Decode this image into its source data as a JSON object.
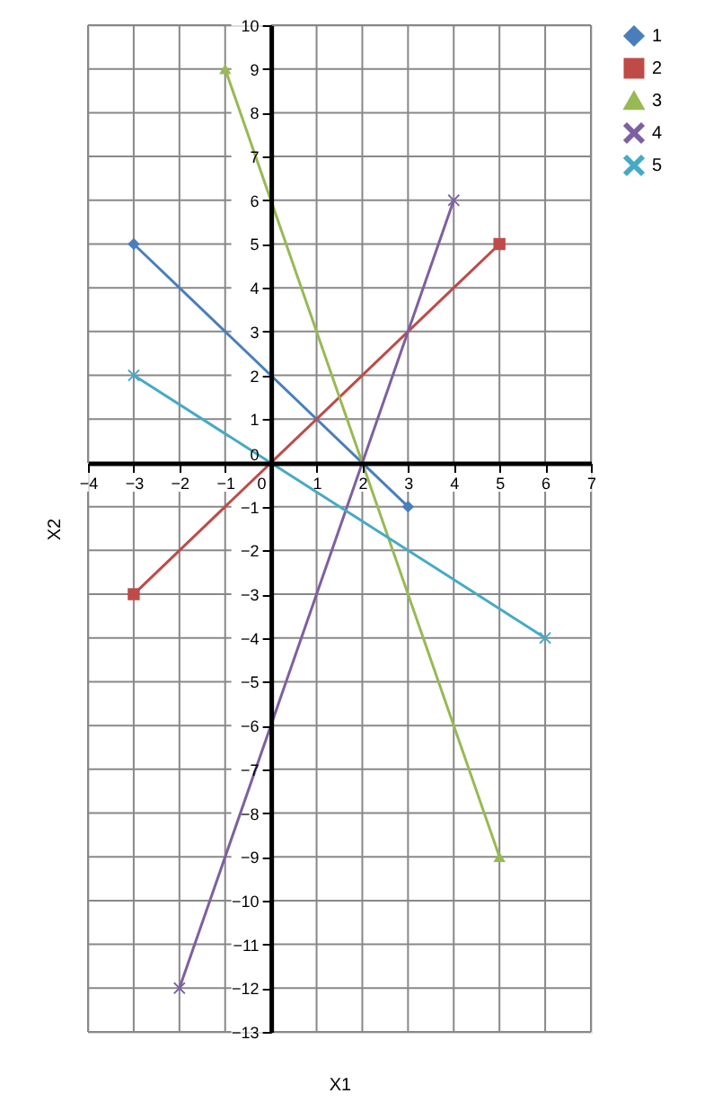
{
  "chart_data": {
    "type": "line",
    "xlabel": "X1",
    "ylabel": "X2",
    "xlim": [
      -4,
      7
    ],
    "xticks": [
      -4,
      -3,
      -2,
      -1,
      0,
      1,
      2,
      3,
      4,
      5,
      6,
      7
    ],
    "ylim": [
      -13,
      10
    ],
    "yticks": [
      -13,
      -12,
      -11,
      -10,
      -9,
      -8,
      -7,
      -6,
      -5,
      -4,
      -3,
      -2,
      -1,
      0,
      1,
      2,
      3,
      4,
      5,
      6,
      7,
      8,
      9,
      10
    ],
    "grid": true,
    "legend": "right",
    "series": [
      {
        "name": "1",
        "color": "#4a7ebb",
        "marker": "diamond",
        "x": [
          -3,
          3
        ],
        "values": [
          5,
          -1
        ]
      },
      {
        "name": "2",
        "color": "#be4b48",
        "marker": "square",
        "x": [
          -3,
          5
        ],
        "values": [
          -3,
          5
        ]
      },
      {
        "name": "3",
        "color": "#98b954",
        "marker": "triangle",
        "x": [
          -1,
          5
        ],
        "values": [
          9,
          -9
        ]
      },
      {
        "name": "4",
        "color": "#7d60a0",
        "marker": "cross",
        "x": [
          -2,
          4
        ],
        "values": [
          -12,
          6
        ]
      },
      {
        "name": "5",
        "color": "#46aac5",
        "marker": "cross",
        "x": [
          -3,
          6
        ],
        "values": [
          2,
          -4
        ]
      }
    ]
  }
}
